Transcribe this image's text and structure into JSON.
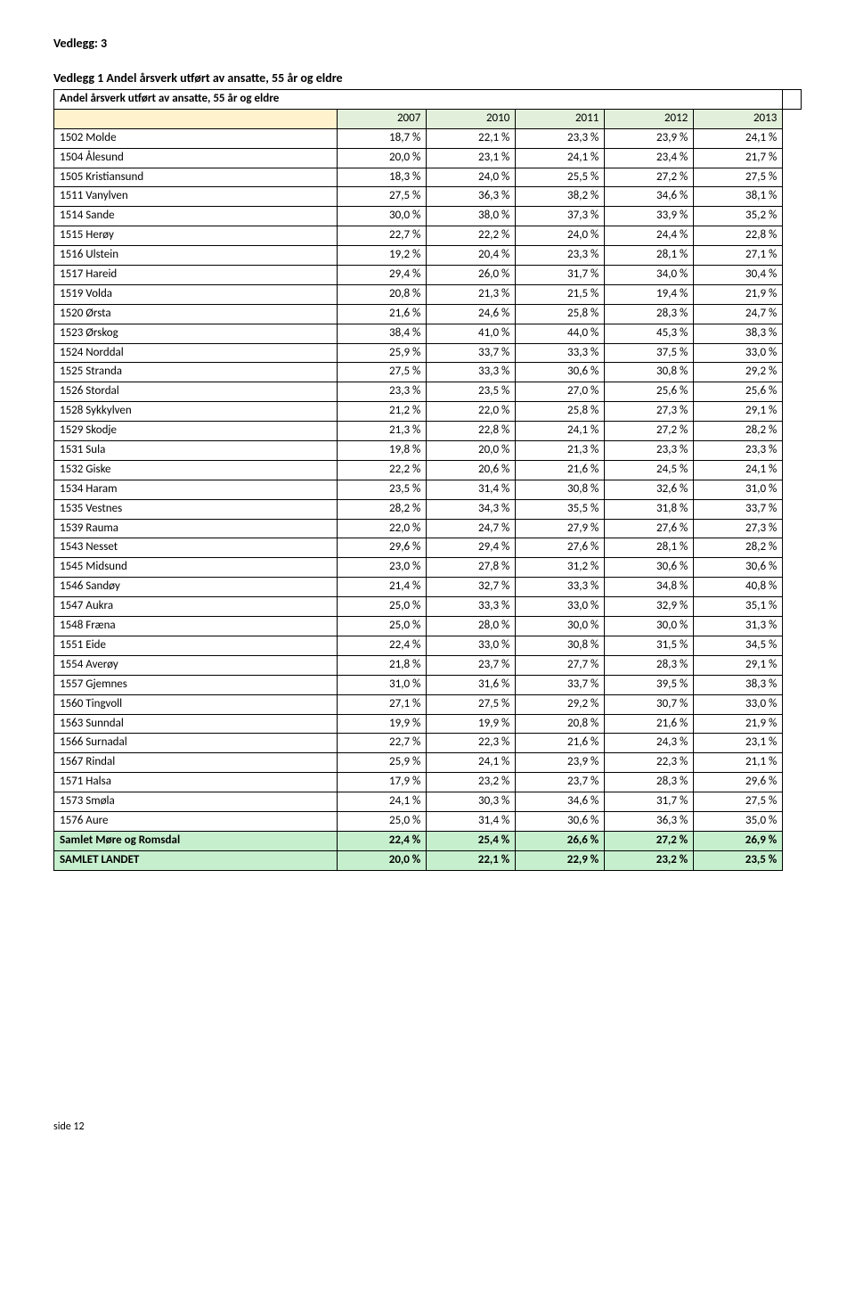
{
  "colors": {
    "yearHeaderBg": "#e2efda",
    "yearLabelBg": "#fff2cc",
    "summaryBg": "#c6efce",
    "border": "#000000",
    "text": "#000000",
    "page": "#ffffff"
  },
  "typography": {
    "fontFamily": "Calibri, Arial, sans-serif",
    "baseFontSizePx": 13,
    "headerFontSizePx": 14
  },
  "header": "Vedlegg: 3",
  "subtitle": "Vedlegg 1 Andel årsverk utført av ansatte, 55 år og eldre",
  "table": {
    "title": "Andel årsverk utført av ansatte, 55 år og eldre",
    "years": [
      "2007",
      "2010",
      "2011",
      "2012",
      "2013"
    ],
    "rows": [
      {
        "name": "1502 Molde",
        "v": [
          "18,7 %",
          "22,1 %",
          "23,3 %",
          "23,9 %",
          "24,1 %"
        ]
      },
      {
        "name": "1504 Ålesund",
        "v": [
          "20,0 %",
          "23,1 %",
          "24,1 %",
          "23,4 %",
          "21,7 %"
        ]
      },
      {
        "name": "1505 Kristiansund",
        "v": [
          "18,3 %",
          "24,0 %",
          "25,5 %",
          "27,2 %",
          "27,5 %"
        ]
      },
      {
        "name": "1511 Vanylven",
        "v": [
          "27,5 %",
          "36,3 %",
          "38,2 %",
          "34,6 %",
          "38,1 %"
        ]
      },
      {
        "name": "1514 Sande",
        "v": [
          "30,0 %",
          "38,0 %",
          "37,3 %",
          "33,9 %",
          "35,2 %"
        ]
      },
      {
        "name": "1515 Herøy",
        "v": [
          "22,7 %",
          "22,2 %",
          "24,0 %",
          "24,4 %",
          "22,8 %"
        ]
      },
      {
        "name": "1516 Ulstein",
        "v": [
          "19,2 %",
          "20,4 %",
          "23,3 %",
          "28,1 %",
          "27,1 %"
        ]
      },
      {
        "name": "1517 Hareid",
        "v": [
          "29,4 %",
          "26,0 %",
          "31,7 %",
          "34,0 %",
          "30,4 %"
        ]
      },
      {
        "name": "1519 Volda",
        "v": [
          "20,8 %",
          "21,3 %",
          "21,5 %",
          "19,4 %",
          "21,9 %"
        ]
      },
      {
        "name": "1520 Ørsta",
        "v": [
          "21,6 %",
          "24,6 %",
          "25,8 %",
          "28,3 %",
          "24,7 %"
        ]
      },
      {
        "name": "1523 Ørskog",
        "v": [
          "38,4 %",
          "41,0 %",
          "44,0 %",
          "45,3 %",
          "38,3 %"
        ]
      },
      {
        "name": "1524 Norddal",
        "v": [
          "25,9 %",
          "33,7 %",
          "33,3 %",
          "37,5 %",
          "33,0 %"
        ]
      },
      {
        "name": "1525 Stranda",
        "v": [
          "27,5 %",
          "33,3 %",
          "30,6 %",
          "30,8 %",
          "29,2 %"
        ]
      },
      {
        "name": "1526 Stordal",
        "v": [
          "23,3 %",
          "23,5 %",
          "27,0 %",
          "25,6 %",
          "25,6 %"
        ]
      },
      {
        "name": "1528 Sykkylven",
        "v": [
          "21,2 %",
          "22,0 %",
          "25,8 %",
          "27,3 %",
          "29,1 %"
        ]
      },
      {
        "name": "1529 Skodje",
        "v": [
          "21,3 %",
          "22,8 %",
          "24,1 %",
          "27,2 %",
          "28,2 %"
        ]
      },
      {
        "name": "1531 Sula",
        "v": [
          "19,8 %",
          "20,0 %",
          "21,3 %",
          "23,3 %",
          "23,3 %"
        ]
      },
      {
        "name": "1532 Giske",
        "v": [
          "22,2 %",
          "20,6 %",
          "21,6 %",
          "24,5 %",
          "24,1 %"
        ]
      },
      {
        "name": "1534 Haram",
        "v": [
          "23,5 %",
          "31,4 %",
          "30,8 %",
          "32,6 %",
          "31,0 %"
        ]
      },
      {
        "name": "1535 Vestnes",
        "v": [
          "28,2 %",
          "34,3 %",
          "35,5 %",
          "31,8 %",
          "33,7 %"
        ]
      },
      {
        "name": "1539 Rauma",
        "v": [
          "22,0 %",
          "24,7 %",
          "27,9 %",
          "27,6 %",
          "27,3 %"
        ]
      },
      {
        "name": "1543 Nesset",
        "v": [
          "29,6 %",
          "29,4 %",
          "27,6 %",
          "28,1 %",
          "28,2 %"
        ]
      },
      {
        "name": "1545 Midsund",
        "v": [
          "23,0 %",
          "27,8 %",
          "31,2 %",
          "30,6 %",
          "30,6 %"
        ]
      },
      {
        "name": "1546 Sandøy",
        "v": [
          "21,4 %",
          "32,7 %",
          "33,3 %",
          "34,8 %",
          "40,8 %"
        ]
      },
      {
        "name": "1547 Aukra",
        "v": [
          "25,0 %",
          "33,3 %",
          "33,0 %",
          "32,9 %",
          "35,1 %"
        ]
      },
      {
        "name": "1548 Fræna",
        "v": [
          "25,0 %",
          "28,0 %",
          "30,0 %",
          "30,0 %",
          "31,3 %"
        ]
      },
      {
        "name": "1551 Eide",
        "v": [
          "22,4 %",
          "33,0 %",
          "30,8 %",
          "31,5 %",
          "34,5 %"
        ]
      },
      {
        "name": "1554 Averøy",
        "v": [
          "21,8 %",
          "23,7 %",
          "27,7 %",
          "28,3 %",
          "29,1 %"
        ]
      },
      {
        "name": "1557 Gjemnes",
        "v": [
          "31,0 %",
          "31,6 %",
          "33,7 %",
          "39,5 %",
          "38,3 %"
        ]
      },
      {
        "name": "1560 Tingvoll",
        "v": [
          "27,1 %",
          "27,5 %",
          "29,2 %",
          "30,7 %",
          "33,0 %"
        ]
      },
      {
        "name": "1563 Sunndal",
        "v": [
          "19,9 %",
          "19,9 %",
          "20,8 %",
          "21,6 %",
          "21,9 %"
        ]
      },
      {
        "name": "1566 Surnadal",
        "v": [
          "22,7 %",
          "22,3 %",
          "21,6 %",
          "24,3 %",
          "23,1 %"
        ]
      },
      {
        "name": "1567 Rindal",
        "v": [
          "25,9 %",
          "24,1 %",
          "23,9 %",
          "22,3 %",
          "21,1 %"
        ]
      },
      {
        "name": "1571 Halsa",
        "v": [
          "17,9 %",
          "23,2 %",
          "23,7 %",
          "28,3 %",
          "29,6 %"
        ]
      },
      {
        "name": "1573 Smøla",
        "v": [
          "24,1 %",
          "30,3 %",
          "34,6 %",
          "31,7 %",
          "27,5 %"
        ]
      },
      {
        "name": "1576 Aure",
        "v": [
          "25,0 %",
          "31,4 %",
          "30,6 %",
          "36,3 %",
          "35,0 %"
        ]
      }
    ],
    "summary": [
      {
        "name": "Samlet Møre og Romsdal",
        "v": [
          "22,4 %",
          "25,4 %",
          "26,6 %",
          "27,2 %",
          "26,9 %"
        ]
      },
      {
        "name": "SAMLET LANDET",
        "v": [
          "20,0 %",
          "22,1 %",
          "22,9 %",
          "23,2 %",
          "23,5 %"
        ]
      }
    ]
  },
  "footer": "side 12"
}
